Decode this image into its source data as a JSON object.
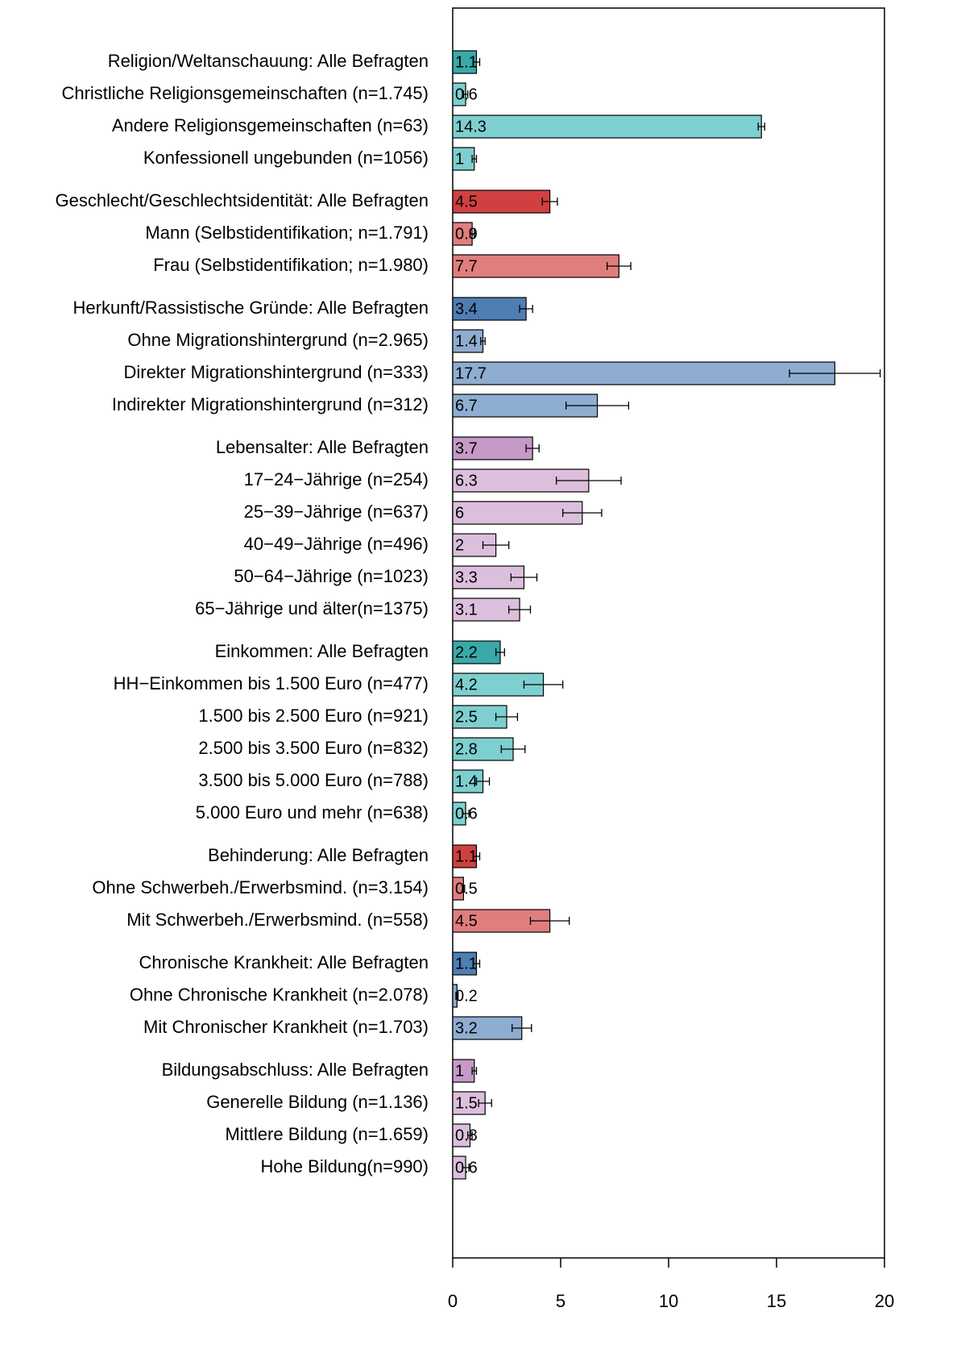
{
  "chart_data": {
    "type": "barh",
    "categories": [
      "Religion/Weltanschauung: Alle Befragten",
      "Christliche Religionsgemeinschaften (n=1.745)",
      "Andere Religionsgemeinschaften (n=63)",
      "Konfessionell ungebunden (n=1056)",
      "Geschlecht/Geschlechtsidentität: Alle Befragten",
      "Mann (Selbstidentifikation; n=1.791)",
      "Frau (Selbstidentifikation; n=1.980)",
      "Herkunft/Rassistische Gründe: Alle Befragten",
      "Ohne Migrationshintergrund (n=2.965)",
      "Direkter Migrationshintergrund (n=333)",
      "Indirekter Migrationshintergrund (n=312)",
      "Lebensalter: Alle Befragten",
      "17−24−Jährige (n=254)",
      "25−39−Jährige (n=637)",
      "40−49−Jährige (n=496)",
      "50−64−Jährige (n=1023)",
      "65−Jährige und älter(n=1375)",
      "Einkommen: Alle Befragten",
      "HH−Einkommen bis 1.500 Euro (n=477)",
      "1.500 bis 2.500 Euro (n=921)",
      "2.500 bis 3.500 Euro (n=832)",
      "3.500 bis 5.000 Euro (n=788)",
      "5.000 Euro und mehr (n=638)",
      "Behinderung: Alle Befragten",
      "Ohne Schwerbeh./Erwerbsmind. (n=3.154)",
      "Mit Schwerbeh./Erwerbsmind. (n=558)",
      "Chronische Krankheit: Alle Befragten",
      "Ohne Chronische Krankheit (n=2.078)",
      "Mit Chronischer Krankheit (n=1.703)",
      "Bildungsabschluss: Alle Befragten",
      "Generelle Bildung (n=1.136)",
      "Mittlere Bildung (n=1.659)",
      "Hohe Bildung(n=990)"
    ],
    "values": [
      1.1,
      0.6,
      14.3,
      1,
      4.5,
      0.9,
      7.7,
      3.4,
      1.4,
      17.7,
      6.7,
      3.7,
      6.3,
      6,
      2,
      3.3,
      3.1,
      2.2,
      4.2,
      2.5,
      2.8,
      1.4,
      0.6,
      1.1,
      0.5,
      4.5,
      1.1,
      0.2,
      3.2,
      1,
      1.5,
      0.8,
      0.6
    ],
    "errors": [
      0.15,
      0.1,
      0.15,
      0.1,
      0.35,
      0.1,
      0.55,
      0.3,
      0.1,
      2.1,
      1.45,
      0.3,
      1.5,
      0.9,
      0.6,
      0.6,
      0.5,
      0.2,
      0.9,
      0.5,
      0.55,
      0.3,
      0.15,
      0.15,
      0.05,
      0.9,
      0.15,
      0.05,
      0.45,
      0.1,
      0.3,
      0.1,
      0.15
    ],
    "colors": [
      "#3aa9a9",
      "#7ecfcf",
      "#7ecfcf",
      "#7ecfcf",
      "#d04040",
      "#e07e7e",
      "#e07e7e",
      "#4f7eb3",
      "#8eadd0",
      "#8eadd0",
      "#8eadd0",
      "#c59ac7",
      "#dcbfdc",
      "#dcbfdc",
      "#dcbfdc",
      "#dcbfdc",
      "#dcbfdc",
      "#3aa9a9",
      "#7ecfcf",
      "#7ecfcf",
      "#7ecfcf",
      "#7ecfcf",
      "#7ecfcf",
      "#d04040",
      "#e07e7e",
      "#e07e7e",
      "#4f7eb3",
      "#8eadd0",
      "#8eadd0",
      "#c59ac7",
      "#dcbfdc",
      "#dcbfdc",
      "#dcbfdc"
    ],
    "xlim": [
      0,
      20
    ],
    "xticks": [
      0,
      5,
      10,
      15,
      20
    ]
  }
}
